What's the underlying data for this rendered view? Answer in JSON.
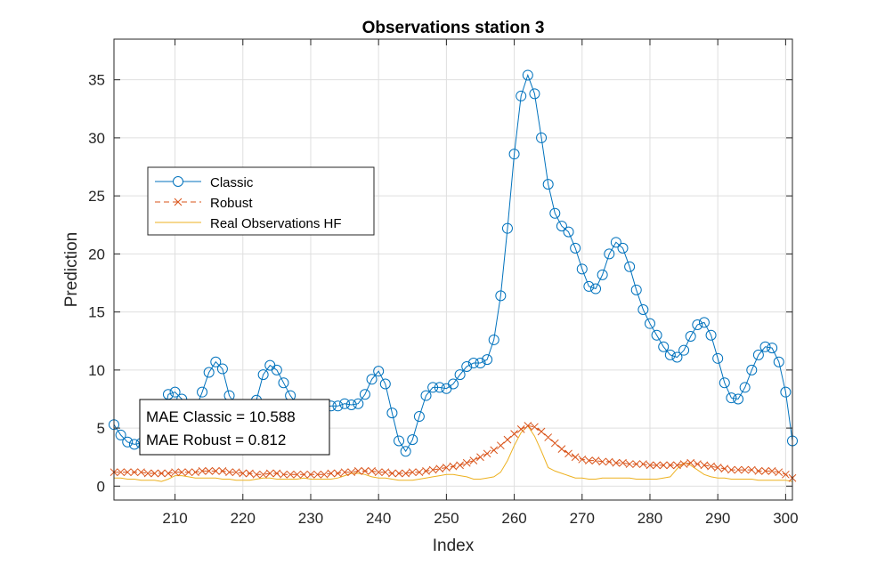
{
  "chart_data": {
    "type": "line",
    "title": "Observations station 3",
    "xlabel": "Index",
    "ylabel": "Prediction",
    "xlim": [
      201,
      301
    ],
    "ylim": [
      -1.2,
      38.5
    ],
    "grid": true,
    "legend_position": "upper-left",
    "x_ticks": [
      210,
      220,
      230,
      240,
      250,
      260,
      270,
      280,
      290,
      300
    ],
    "y_ticks": [
      0,
      5,
      10,
      15,
      20,
      25,
      30,
      35
    ],
    "x_start": 201,
    "series": [
      {
        "name": "Classic",
        "color": "#0072BD",
        "marker": "circle",
        "line_style": "solid",
        "values": [
          5.3,
          4.4,
          3.8,
          3.6,
          3.7,
          3.8,
          4.2,
          5.0,
          7.9,
          8.1,
          7.5,
          6.8,
          6.6,
          8.1,
          9.8,
          10.7,
          10.1,
          7.8,
          6.9,
          6.2,
          6.4,
          7.4,
          9.6,
          10.4,
          10.0,
          8.9,
          7.8,
          7.0,
          6.6,
          6.5,
          6.6,
          6.8,
          6.9,
          6.9,
          7.1,
          7.0,
          7.1,
          7.9,
          9.2,
          9.9,
          8.8,
          6.3,
          3.9,
          3.0,
          4.0,
          6.0,
          7.8,
          8.5,
          8.5,
          8.4,
          8.8,
          9.6,
          10.3,
          10.6,
          10.6,
          10.9,
          12.6,
          16.4,
          22.2,
          28.6,
          33.6,
          35.4,
          33.8,
          30.0,
          26.0,
          23.5,
          22.4,
          21.9,
          20.5,
          18.7,
          17.2,
          17.0,
          18.2,
          20.0,
          21.0,
          20.5,
          18.9,
          16.9,
          15.2,
          14.0,
          13.0,
          12.0,
          11.3,
          11.1,
          11.7,
          12.9,
          13.9,
          14.1,
          13.0,
          11.0,
          8.9,
          7.6,
          7.5,
          8.5,
          10.0,
          11.3,
          12.0,
          11.9,
          10.7,
          8.1,
          3.9
        ]
      },
      {
        "name": "Robust",
        "color": "#D95319",
        "marker": "x",
        "line_style": "dashed",
        "values": [
          1.2,
          1.2,
          1.2,
          1.2,
          1.2,
          1.1,
          1.1,
          1.1,
          1.1,
          1.2,
          1.2,
          1.2,
          1.2,
          1.3,
          1.3,
          1.3,
          1.3,
          1.2,
          1.2,
          1.1,
          1.1,
          1.0,
          1.0,
          1.1,
          1.1,
          1.0,
          1.0,
          1.0,
          1.0,
          1.0,
          1.0,
          1.0,
          1.1,
          1.1,
          1.2,
          1.2,
          1.3,
          1.3,
          1.3,
          1.2,
          1.2,
          1.1,
          1.1,
          1.1,
          1.2,
          1.2,
          1.3,
          1.4,
          1.5,
          1.6,
          1.7,
          1.8,
          2.0,
          2.2,
          2.5,
          2.8,
          3.1,
          3.5,
          4.0,
          4.5,
          4.9,
          5.2,
          5.1,
          4.7,
          4.2,
          3.7,
          3.2,
          2.8,
          2.5,
          2.3,
          2.2,
          2.2,
          2.1,
          2.1,
          2.0,
          2.0,
          1.9,
          1.9,
          1.9,
          1.8,
          1.8,
          1.8,
          1.8,
          1.8,
          1.9,
          2.0,
          1.9,
          1.8,
          1.7,
          1.6,
          1.5,
          1.4,
          1.4,
          1.4,
          1.4,
          1.3,
          1.3,
          1.3,
          1.2,
          1.0,
          0.7
        ]
      },
      {
        "name": "Real Observations HF",
        "color": "#EDB120",
        "marker": "none",
        "line_style": "solid",
        "values": [
          0.7,
          0.7,
          0.6,
          0.6,
          0.5,
          0.5,
          0.5,
          0.4,
          0.6,
          0.9,
          0.9,
          0.8,
          0.7,
          0.7,
          0.7,
          0.7,
          0.6,
          0.6,
          0.5,
          0.5,
          0.5,
          0.6,
          0.7,
          0.7,
          0.6,
          0.6,
          0.6,
          0.6,
          0.7,
          0.6,
          0.6,
          0.6,
          0.6,
          0.7,
          0.9,
          1.1,
          1.1,
          1.0,
          0.8,
          0.7,
          0.7,
          0.6,
          0.5,
          0.5,
          0.5,
          0.6,
          0.7,
          0.8,
          0.9,
          1.0,
          1.0,
          0.9,
          0.8,
          0.6,
          0.6,
          0.7,
          0.8,
          1.2,
          2.2,
          3.5,
          4.6,
          5.2,
          4.3,
          3.0,
          1.6,
          1.3,
          1.1,
          0.9,
          0.7,
          0.7,
          0.6,
          0.6,
          0.7,
          0.7,
          0.7,
          0.7,
          0.7,
          0.6,
          0.6,
          0.6,
          0.6,
          0.7,
          0.8,
          1.5,
          2.0,
          1.8,
          1.4,
          1.0,
          0.8,
          0.7,
          0.7,
          0.6,
          0.6,
          0.6,
          0.6,
          0.5,
          0.5,
          0.5,
          0.5,
          0.5,
          0.4
        ]
      }
    ],
    "annotation": {
      "lines": [
        "MAE Classic = 10.588",
        "MAE Robust = 0.812"
      ]
    }
  }
}
